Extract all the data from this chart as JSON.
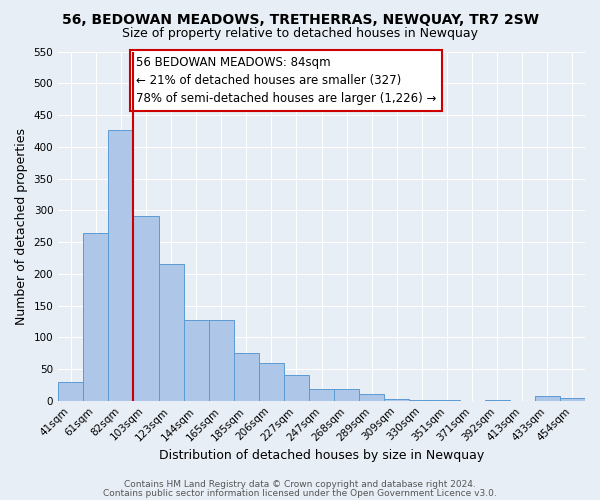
{
  "title": "56, BEDOWAN MEADOWS, TRETHERRAS, NEWQUAY, TR7 2SW",
  "subtitle": "Size of property relative to detached houses in Newquay",
  "xlabel": "Distribution of detached houses by size in Newquay",
  "ylabel": "Number of detached properties",
  "bar_labels": [
    "41sqm",
    "61sqm",
    "82sqm",
    "103sqm",
    "123sqm",
    "144sqm",
    "165sqm",
    "185sqm",
    "206sqm",
    "227sqm",
    "247sqm",
    "268sqm",
    "289sqm",
    "309sqm",
    "330sqm",
    "351sqm",
    "371sqm",
    "392sqm",
    "413sqm",
    "433sqm",
    "454sqm"
  ],
  "bar_values": [
    30,
    265,
    427,
    291,
    215,
    128,
    128,
    76,
    59,
    40,
    18,
    19,
    10,
    3,
    2,
    1,
    0,
    1,
    0,
    8,
    4
  ],
  "bar_color": "#aec6e8",
  "bar_edge_color": "#5b9bd5",
  "vline_pos": 2.5,
  "vline_color": "#cc0000",
  "ylim": [
    0,
    550
  ],
  "yticks": [
    0,
    50,
    100,
    150,
    200,
    250,
    300,
    350,
    400,
    450,
    500,
    550
  ],
  "annotation_text": "56 BEDOWAN MEADOWS: 84sqm\n← 21% of detached houses are smaller (327)\n78% of semi-detached houses are larger (1,226) →",
  "annotation_box_color": "#ffffff",
  "annotation_box_edge": "#cc0000",
  "footer_line1": "Contains HM Land Registry data © Crown copyright and database right 2024.",
  "footer_line2": "Contains public sector information licensed under the Open Government Licence v3.0.",
  "bg_color": "#e8eef5",
  "plot_bg_color": "#e8eef5",
  "grid_color": "#ffffff",
  "title_fontsize": 10,
  "subtitle_fontsize": 9,
  "axis_label_fontsize": 9,
  "tick_fontsize": 7.5,
  "annotation_fontsize": 8.5,
  "footer_fontsize": 6.5
}
